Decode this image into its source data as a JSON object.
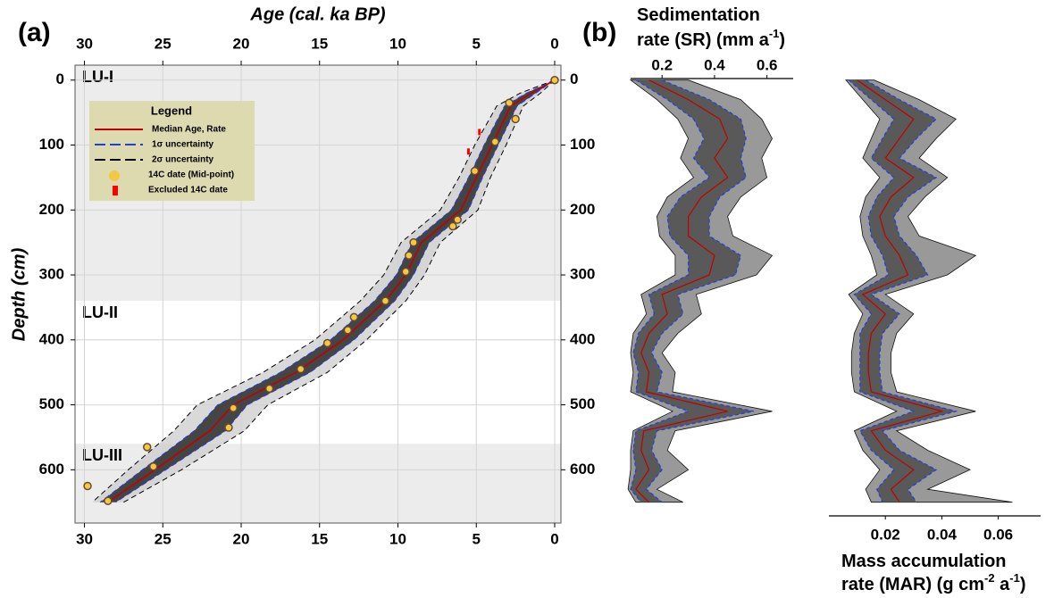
{
  "chart_data": [
    {
      "type": "age_depth",
      "panel_label": "(a)",
      "xlabel": "Age (cal. ka BP)",
      "ylabel": "Depth (cm)",
      "xlim": [
        30.6,
        -0.4
      ],
      "ylim": [
        -23,
        682
      ],
      "xticks": [
        30,
        25,
        20,
        15,
        10,
        5,
        0
      ],
      "yticks": [
        0,
        100,
        200,
        300,
        400,
        500,
        600
      ],
      "grid": true,
      "units": [
        {
          "label": "LU-I",
          "shade": true
        },
        {
          "label": "LU-II",
          "shade": false
        },
        {
          "label": "LU-III",
          "shade": true
        }
      ],
      "boundaries": [
        340,
        560
      ],
      "legend_title": "Legend",
      "depth": [
        0,
        20,
        40,
        100,
        150,
        200,
        250,
        300,
        340,
        400,
        450,
        500,
        540,
        600,
        650
      ],
      "series": [
        {
          "name": "Median Age, Rate",
          "color": "#c00000",
          "values": [
            0,
            1.5,
            2.8,
            4,
            5,
            6,
            8.5,
            9.5,
            10.8,
            13.5,
            16.5,
            20.5,
            22,
            25.5,
            28.5
          ]
        },
        {
          "name": "1σ uncertainty",
          "color": "#1f3fe0",
          "lower": [
            0,
            1.2,
            2.4,
            3.6,
            4.6,
            5.5,
            8,
            9,
            10.2,
            12.8,
            15.6,
            19.6,
            21,
            24.8,
            28
          ],
          "upper": [
            0,
            1.8,
            3.2,
            4.5,
            5.5,
            6.6,
            9.1,
            10.1,
            11.5,
            14.3,
            17.5,
            21.5,
            23,
            26.3,
            29
          ]
        },
        {
          "name": "2σ uncertainty",
          "color": "#000000",
          "lower": [
            0,
            0.9,
            2,
            3.1,
            4.1,
            4.9,
            7.3,
            8.3,
            9.5,
            12,
            14.5,
            18.3,
            19.8,
            23.8,
            27.5
          ],
          "upper": [
            0,
            2.2,
            3.7,
            5.1,
            6.1,
            7.3,
            9.8,
            10.9,
            12.4,
            15.3,
            18.6,
            22.8,
            24.3,
            27.2,
            29.5
          ]
        },
        {
          "name": "14C date (Mid-point)",
          "color": "#f2c846",
          "depth": [
            0,
            35,
            60,
            95,
            140,
            215,
            225,
            250,
            270,
            295,
            340,
            365,
            385,
            405,
            445,
            475,
            505,
            535,
            565,
            595,
            625,
            648
          ],
          "values": [
            0,
            2.9,
            2.5,
            3.8,
            5.1,
            6.2,
            6.5,
            9,
            9.3,
            9.5,
            10.8,
            12.8,
            13.2,
            14.5,
            16.2,
            18.2,
            20.5,
            20.8,
            26,
            25.6,
            29.8,
            28.5
          ]
        },
        {
          "name": "Excluded 14C date",
          "color": "#ff0000",
          "depth": [
            80,
            110
          ],
          "values": [
            4.8,
            5.5
          ]
        }
      ]
    },
    {
      "type": "profile",
      "xlabel_lines": [
        [
          {
            "t": "Sedimentation"
          }
        ],
        [
          {
            "t": "rate (SR) (mm a"
          },
          {
            "t": "-1",
            "sup": true
          },
          {
            "t": ")"
          }
        ]
      ],
      "axis_side": "top",
      "xlim": [
        0.08,
        0.7
      ],
      "xticks": [
        0.2,
        0.4,
        0.6
      ],
      "depth": [
        0,
        30,
        60,
        90,
        120,
        150,
        180,
        210,
        240,
        270,
        300,
        330,
        360,
        390,
        420,
        450,
        480,
        510,
        540,
        570,
        600,
        630,
        650
      ],
      "median": [
        0.15,
        0.3,
        0.42,
        0.45,
        0.4,
        0.45,
        0.35,
        0.3,
        0.3,
        0.4,
        0.38,
        0.2,
        0.22,
        0.15,
        0.12,
        0.15,
        0.14,
        0.45,
        0.13,
        0.12,
        0.15,
        0.1,
        0.15
      ],
      "sigma1_lower": [
        0.1,
        0.22,
        0.32,
        0.36,
        0.32,
        0.38,
        0.27,
        0.22,
        0.23,
        0.3,
        0.3,
        0.15,
        0.17,
        0.11,
        0.09,
        0.11,
        0.1,
        0.3,
        0.1,
        0.09,
        0.1,
        0.08,
        0.12
      ],
      "sigma1_upper": [
        0.2,
        0.38,
        0.5,
        0.52,
        0.5,
        0.52,
        0.42,
        0.38,
        0.38,
        0.5,
        0.48,
        0.26,
        0.28,
        0.2,
        0.16,
        0.2,
        0.18,
        0.55,
        0.18,
        0.16,
        0.2,
        0.14,
        0.2
      ],
      "sigma2_lower": [
        0.08,
        0.18,
        0.26,
        0.3,
        0.27,
        0.32,
        0.22,
        0.18,
        0.19,
        0.25,
        0.25,
        0.12,
        0.14,
        0.09,
        0.08,
        0.09,
        0.08,
        0.24,
        0.09,
        0.08,
        0.08,
        0.07,
        0.1
      ],
      "sigma2_upper": [
        0.3,
        0.5,
        0.58,
        0.62,
        0.58,
        0.6,
        0.5,
        0.45,
        0.47,
        0.62,
        0.56,
        0.33,
        0.35,
        0.26,
        0.2,
        0.25,
        0.24,
        0.62,
        0.25,
        0.22,
        0.3,
        0.18,
        0.28
      ]
    },
    {
      "type": "profile",
      "xlabel_lines": [
        [
          {
            "t": "Mass accumulation"
          }
        ],
        [
          {
            "t": "rate (MAR) (g cm"
          },
          {
            "t": "-2",
            "sup": true
          },
          {
            "t": " a"
          },
          {
            "t": "-1",
            "sup": true
          },
          {
            "t": ")"
          }
        ]
      ],
      "axis_side": "bottom",
      "xlim": [
        0,
        0.075
      ],
      "xticks": [
        0.02,
        0.04,
        0.06
      ],
      "depth": [
        0,
        30,
        60,
        90,
        120,
        150,
        180,
        210,
        240,
        270,
        300,
        330,
        360,
        390,
        420,
        450,
        480,
        510,
        540,
        570,
        600,
        630,
        650
      ],
      "median": [
        0.01,
        0.02,
        0.03,
        0.025,
        0.02,
        0.03,
        0.022,
        0.018,
        0.02,
        0.025,
        0.028,
        0.012,
        0.02,
        0.015,
        0.014,
        0.014,
        0.015,
        0.04,
        0.015,
        0.02,
        0.03,
        0.022,
        0.025
      ],
      "sigma1_lower": [
        0.007,
        0.015,
        0.023,
        0.019,
        0.015,
        0.023,
        0.017,
        0.014,
        0.015,
        0.019,
        0.021,
        0.009,
        0.015,
        0.011,
        0.011,
        0.011,
        0.011,
        0.03,
        0.011,
        0.015,
        0.023,
        0.017,
        0.019
      ],
      "sigma1_upper": [
        0.013,
        0.025,
        0.038,
        0.031,
        0.025,
        0.038,
        0.028,
        0.023,
        0.025,
        0.031,
        0.035,
        0.015,
        0.025,
        0.019,
        0.018,
        0.018,
        0.019,
        0.045,
        0.019,
        0.025,
        0.038,
        0.028,
        0.031
      ],
      "sigma2_lower": [
        0.006,
        0.012,
        0.018,
        0.015,
        0.012,
        0.018,
        0.013,
        0.011,
        0.012,
        0.015,
        0.017,
        0.007,
        0.012,
        0.009,
        0.008,
        0.008,
        0.009,
        0.024,
        0.009,
        0.012,
        0.018,
        0.013,
        0.015
      ],
      "sigma2_upper": [
        0.016,
        0.032,
        0.045,
        0.038,
        0.032,
        0.042,
        0.034,
        0.028,
        0.032,
        0.052,
        0.042,
        0.02,
        0.03,
        0.024,
        0.022,
        0.022,
        0.024,
        0.052,
        0.024,
        0.035,
        0.05,
        0.035,
        0.065
      ]
    }
  ]
}
